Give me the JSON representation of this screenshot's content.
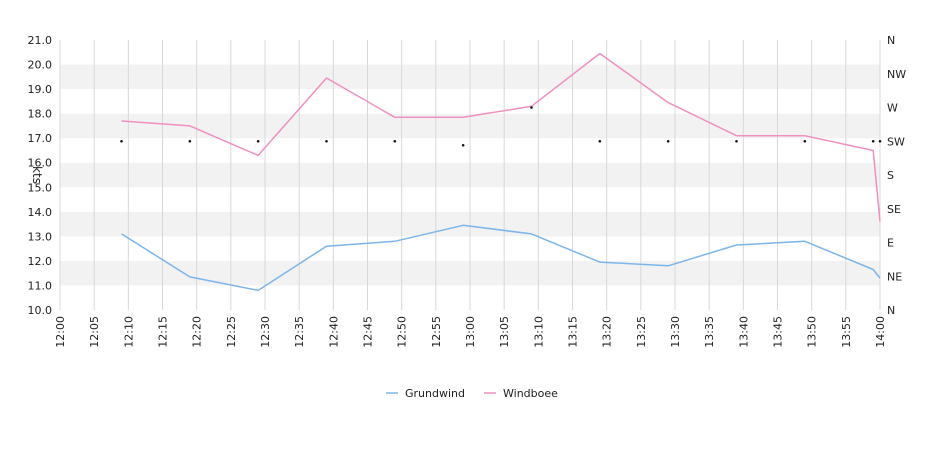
{
  "chart_data": {
    "type": "line",
    "ylabel": "kts",
    "ylim": [
      10.0,
      21.0
    ],
    "y_ticks": [
      "10.0",
      "11.0",
      "12.0",
      "13.0",
      "14.0",
      "15.0",
      "16.0",
      "17.0",
      "18.0",
      "19.0",
      "20.0",
      "21.0"
    ],
    "x_ticks": [
      "12:00",
      "12:05",
      "12:10",
      "12:15",
      "12:20",
      "12:25",
      "12:30",
      "12:35",
      "12:40",
      "12:45",
      "12:50",
      "12:55",
      "13:00",
      "13:05",
      "13:10",
      "13:15",
      "13:20",
      "13:25",
      "13:30",
      "13:35",
      "13:40",
      "13:45",
      "13:50",
      "13:55",
      "14:00"
    ],
    "x_range_minutes": [
      0,
      120
    ],
    "direction_ticks": [
      "N",
      "NW",
      "W",
      "SW",
      "S",
      "SE",
      "E",
      "NE",
      "N"
    ],
    "grid": true,
    "legend_position": "bottom",
    "series": [
      {
        "name": "Grundwind",
        "color": "#7cb5ec",
        "x": [
          "12:09",
          "12:19",
          "12:29",
          "12:39",
          "12:49",
          "12:59",
          "13:09",
          "13:19",
          "13:29",
          "13:39",
          "13:49",
          "13:59",
          "14:00"
        ],
        "values": [
          13.1,
          11.35,
          10.8,
          12.6,
          12.8,
          13.45,
          13.1,
          11.95,
          11.8,
          12.65,
          12.8,
          11.65,
          11.3
        ]
      },
      {
        "name": "Windboee",
        "color": "#f08fc0",
        "x": [
          "12:09",
          "12:19",
          "12:29",
          "12:39",
          "12:49",
          "12:59",
          "13:09",
          "13:19",
          "13:29",
          "13:39",
          "13:49",
          "13:59",
          "14:00"
        ],
        "values": [
          17.7,
          17.5,
          16.3,
          19.45,
          17.85,
          17.85,
          18.3,
          20.45,
          18.45,
          17.1,
          17.1,
          16.5,
          13.6
        ]
      }
    ],
    "direction_points": {
      "x": [
        "12:09",
        "12:19",
        "12:29",
        "12:39",
        "12:49",
        "12:59",
        "13:09",
        "13:19",
        "13:29",
        "13:39",
        "13:49",
        "13:59",
        "14:00"
      ],
      "values": [
        "SW",
        "SW",
        "SW",
        "SW",
        "SW",
        "SW",
        "W",
        "SW",
        "SW",
        "SW",
        "SW",
        "SW",
        "SW"
      ]
    }
  }
}
